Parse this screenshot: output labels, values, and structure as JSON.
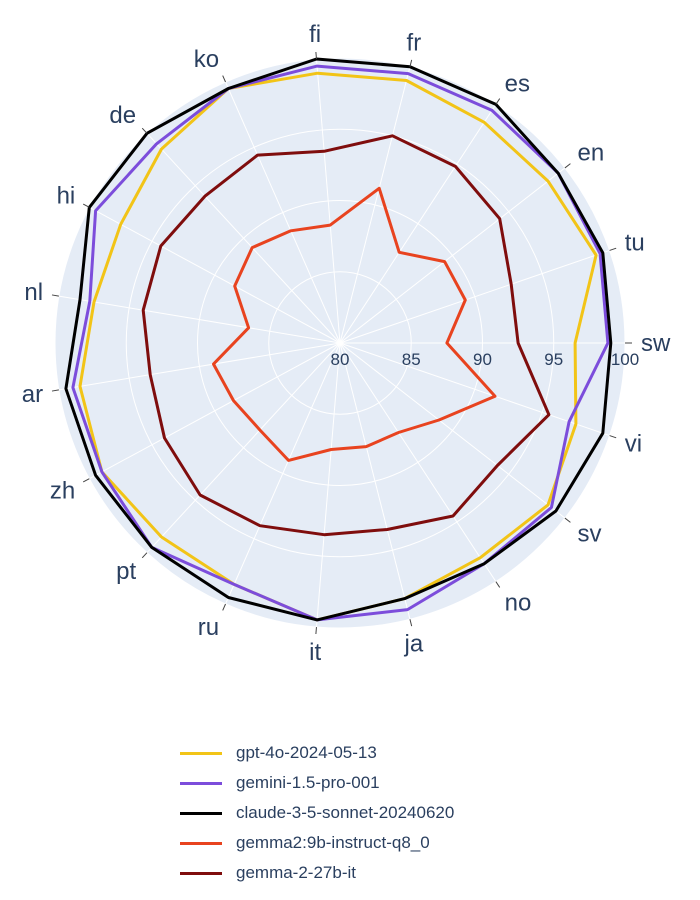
{
  "chart_data": {
    "type": "radar",
    "categories": [
      "sw",
      "tu",
      "en",
      "es",
      "fr",
      "fi",
      "ko",
      "de",
      "hi",
      "nl",
      "ar",
      "zh",
      "pt",
      "ru",
      "it",
      "ja",
      "no",
      "sv",
      "vi"
    ],
    "radial_ticks": [
      "80",
      "85",
      "90",
      "95",
      "100"
    ],
    "radial_range": [
      80,
      100
    ],
    "legend_position": "bottom",
    "background_color": "#e5ecf6",
    "grid_color": "#ffffff",
    "series": [
      {
        "name": "gpt-4o-2024-05-13",
        "color": "#f2c417",
        "values": [
          96.5,
          99.0,
          98.5,
          98.5,
          99.0,
          99.0,
          99.5,
          98.5,
          97.5,
          97.5,
          98.5,
          99.0,
          98.5,
          98.5,
          99.5,
          98.5,
          98.0,
          98.5,
          97.5
        ]
      },
      {
        "name": "gemini-1.5-pro-001",
        "color": "#7c4ddb",
        "values": [
          98.8,
          99.3,
          99.4,
          99.5,
          99.5,
          99.5,
          99.5,
          99.0,
          99.5,
          97.8,
          99.0,
          99.0,
          99.5,
          98.5,
          99.5,
          99.3,
          98.5,
          98.8,
          97.0
        ]
      },
      {
        "name": "claude-3-5-sonnet-20240620",
        "color": "#000000",
        "values": [
          99.0,
          99.5,
          99.4,
          100.0,
          100.0,
          100.0,
          99.5,
          100.0,
          100.0,
          98.5,
          99.5,
          99.5,
          99.5,
          99.5,
          99.5,
          98.5,
          98.5,
          99.2,
          99.5
        ]
      },
      {
        "name": "gemma2:9b-instruct-q8_0",
        "color": "#e8431f",
        "values": [
          87.5,
          89.3,
          89.3,
          87.6,
          91.2,
          88.3,
          88.6,
          89.1,
          88.4,
          86.5,
          89.0,
          88.5,
          88.3,
          89.0,
          87.5,
          87.5,
          87.5,
          88.8,
          91.5
        ]
      },
      {
        "name": "gemma-2-27b-it",
        "color": "#7f0d0d",
        "values": [
          92.5,
          92.7,
          94.2,
          94.8,
          95.0,
          93.5,
          94.4,
          94.0,
          94.3,
          94.0,
          93.5,
          94.0,
          94.5,
          94.0,
          93.5,
          93.5,
          94.5,
          94.0,
          95.5
        ]
      }
    ]
  }
}
